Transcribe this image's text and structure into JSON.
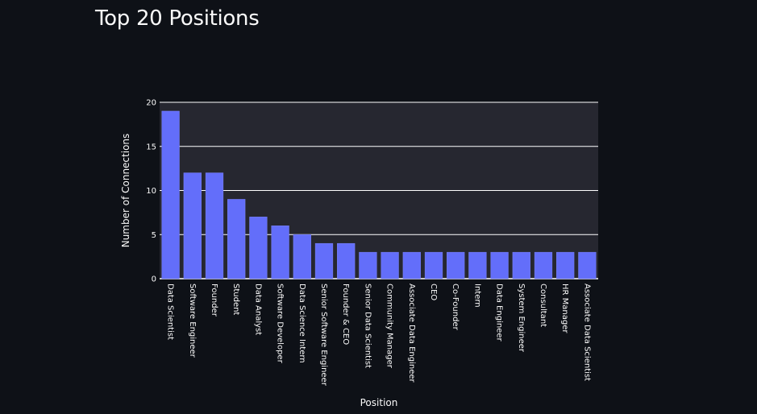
{
  "page": {
    "title": "Top 20 Positions"
  },
  "colors": {
    "background": "#0e1117",
    "plot_background": "#262730",
    "bar": "#636efa",
    "text": "#fafafa",
    "grid": "#ffffff"
  },
  "chart_data": {
    "type": "bar",
    "title": "Top 20 Positions",
    "xlabel": "Position",
    "ylabel": "Number of Connections",
    "ylim": [
      0,
      20
    ],
    "yticks": [
      0,
      5,
      10,
      15,
      20
    ],
    "grid": true,
    "categories": [
      "Data Scientist",
      "Software Engineer",
      "Founder",
      "Student",
      "Data Analyst",
      "Software Developer",
      "Data Science Intern",
      "Senior Software Engineer",
      "Founder & CEO",
      "Senior Data Scientist",
      "Community Manager",
      "Associate Data Engineer",
      "CEO",
      "Co-Founder",
      "Intern",
      "Data Engineer",
      "System Engineer",
      "Consultant",
      "HR Manager",
      "Associate Data Scientist"
    ],
    "values": [
      19,
      12,
      12,
      9,
      7,
      6,
      5,
      4,
      4,
      3,
      3,
      3,
      3,
      3,
      3,
      3,
      3,
      3,
      3,
      3
    ]
  }
}
